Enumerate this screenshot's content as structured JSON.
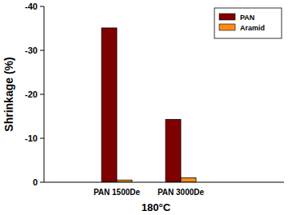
{
  "chart_data": {
    "type": "bar",
    "y_label": "Shrinkage (%)",
    "x_label": "180°C",
    "categories": [
      "PAN 1500De",
      "PAN 3000De"
    ],
    "series": [
      {
        "name": "PAN",
        "color": "#7f0000",
        "values": [
          -35.1,
          -14.3
        ]
      },
      {
        "name": "Aramid",
        "color": "#ff8c1a",
        "values": [
          -0.5,
          -1.0
        ]
      }
    ],
    "ylim": [
      0,
      -40
    ],
    "yticks": [
      0,
      -10,
      -20,
      -30,
      -40
    ],
    "grid": false,
    "legend": "upper right"
  }
}
